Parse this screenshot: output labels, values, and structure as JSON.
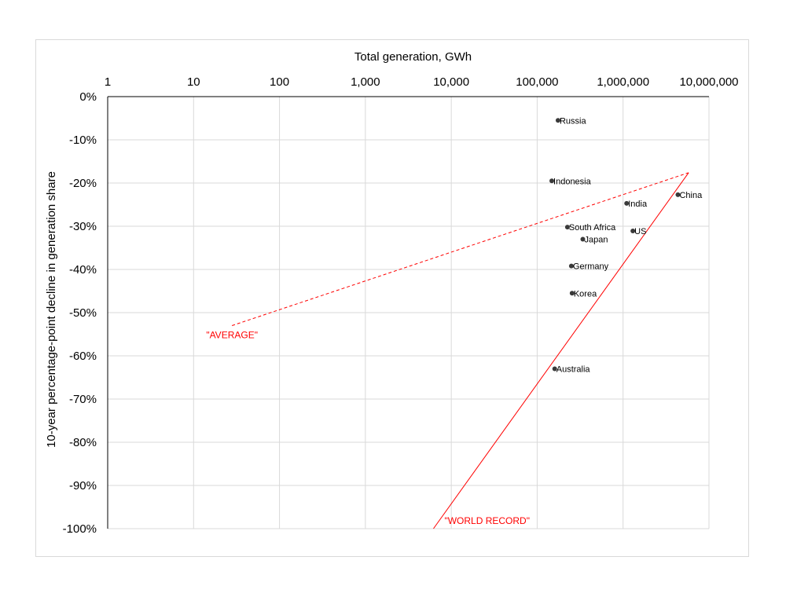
{
  "chart_data": {
    "type": "scatter",
    "title": "",
    "xlabel": "Total generation, GWh",
    "ylabel": "10-year percentage-point decline in generation share",
    "x_scale": "log",
    "xlim": [
      1,
      10000000
    ],
    "ylim": [
      -100,
      0
    ],
    "x_ticks": [
      1,
      10,
      100,
      1000,
      10000,
      100000,
      1000000,
      10000000
    ],
    "x_tick_labels": [
      "1",
      "10",
      "100",
      "1,000",
      "10,000",
      "100,000",
      "1,000,000",
      "10,000,000"
    ],
    "y_ticks": [
      0,
      -10,
      -20,
      -30,
      -40,
      -50,
      -60,
      -70,
      -80,
      -90,
      -100
    ],
    "y_tick_labels": [
      "0%",
      "-10%",
      "-20%",
      "-30%",
      "-40%",
      "-50%",
      "-60%",
      "-70%",
      "-80%",
      "-90%",
      "-100%"
    ],
    "x_axis_position": "top",
    "grid": {
      "horizontal": true,
      "vertical": true
    },
    "legend": "none",
    "point_color": "#3a3a3a",
    "line_color": "#ff0000",
    "points": [
      {
        "label": "Russia",
        "x": 175000,
        "y": -5.5
      },
      {
        "label": "Indonesia",
        "x": 148000,
        "y": -19.5
      },
      {
        "label": "China",
        "x": 4350000,
        "y": -22.7
      },
      {
        "label": "India",
        "x": 1100000,
        "y": -24.7
      },
      {
        "label": "South Africa",
        "x": 225000,
        "y": -30.2
      },
      {
        "label": "US",
        "x": 1300000,
        "y": -31.1
      },
      {
        "label": "Japan",
        "x": 340000,
        "y": -33.0
      },
      {
        "label": "Germany",
        "x": 250000,
        "y": -39.2
      },
      {
        "label": "Korea",
        "x": 255000,
        "y": -45.5
      },
      {
        "label": "Australia",
        "x": 160000,
        "y": -63.0
      }
    ],
    "reference_lines": [
      {
        "label": "\"AVERAGE\"",
        "style": "dashed",
        "x": [
          28,
          5800000
        ],
        "y": [
          -53,
          -17.6
        ]
      },
      {
        "label": "\"WORLD RECORD\"",
        "style": "solid",
        "x": [
          6200,
          5800000
        ],
        "y": [
          -100,
          -17.6
        ]
      }
    ]
  }
}
